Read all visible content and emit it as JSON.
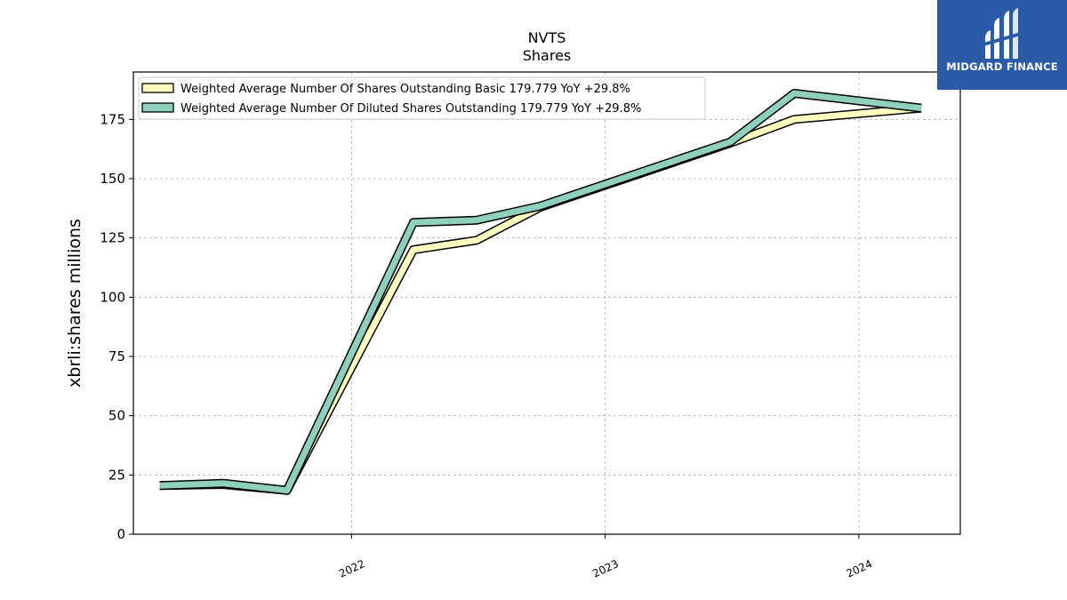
{
  "chart_data": {
    "type": "line",
    "title": "NVTS",
    "subtitle": "Shares",
    "ylabel": "xbrli:shares millions",
    "xlabel": "",
    "ylim": [
      0,
      195
    ],
    "xlim": [
      2021.14,
      2024.4
    ],
    "y_ticks": [
      0,
      25,
      50,
      75,
      100,
      125,
      150,
      175
    ],
    "x_ticks": [
      {
        "value": 2022,
        "label": "2022"
      },
      {
        "value": 2023,
        "label": "2023"
      },
      {
        "value": 2024,
        "label": "2024"
      }
    ],
    "grid": true,
    "legend_position": "top-left",
    "x": [
      "2021-03-31",
      "2021-06-30",
      "2021-09-30",
      "2022-03-31",
      "2022-06-30",
      "2022-09-30",
      "2023-06-30",
      "2023-09-30",
      "2024-03-31"
    ],
    "series": [
      {
        "name": "Weighted Average Number Of Shares Outstanding Basic  179.779 YoY +29.8%",
        "color": "#ffffbf",
        "values": [
          20.5,
          21.0,
          18.5,
          120.0,
          124.0,
          138.0,
          165.0,
          175.0,
          179.779
        ]
      },
      {
        "name": "Weighted Average Number Of Diluted Shares Outstanding  179.779 YoY +29.8%",
        "color": "#8ecfbd",
        "values": [
          20.5,
          21.5,
          18.5,
          131.5,
          132.5,
          138.5,
          165.5,
          186.0,
          179.779
        ]
      }
    ]
  },
  "logo": {
    "text": "MIDGARD FINANCE",
    "icon": "midgard-logo-icon",
    "background": "#2b5aa6"
  }
}
